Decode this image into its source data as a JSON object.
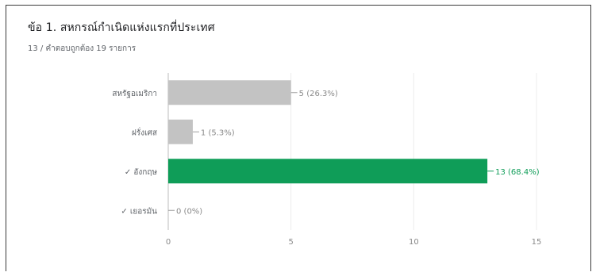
{
  "question": {
    "title": "ข้อ 1. สหกรณ์กำเนิดแห่งแรกที่ประเทศ",
    "summary": "13 / คำตอบถูกต้อง 19 รายการ"
  },
  "colors": {
    "bar_default": "#c3c3c3",
    "bar_correct": "#0f9d58",
    "grid": "#ececec",
    "axis": "#bdbdbd"
  },
  "chart_data": {
    "type": "bar",
    "orientation": "horizontal",
    "categories": [
      "สหรัฐอเมริกา",
      "ฝรั่งเศส",
      "✓ อังกฤษ",
      "✓ เยอรมัน"
    ],
    "values": [
      5,
      1,
      13,
      0
    ],
    "value_labels": [
      "5 (26.3%)",
      "1 (5.3%)",
      "13 (68.4%)",
      "0 (0%)"
    ],
    "correct": [
      false,
      false,
      true,
      true
    ],
    "xlim": [
      0,
      15
    ],
    "xticks": [
      0,
      5,
      10,
      15
    ],
    "grid": true,
    "title": "",
    "xlabel": "",
    "ylabel": ""
  }
}
